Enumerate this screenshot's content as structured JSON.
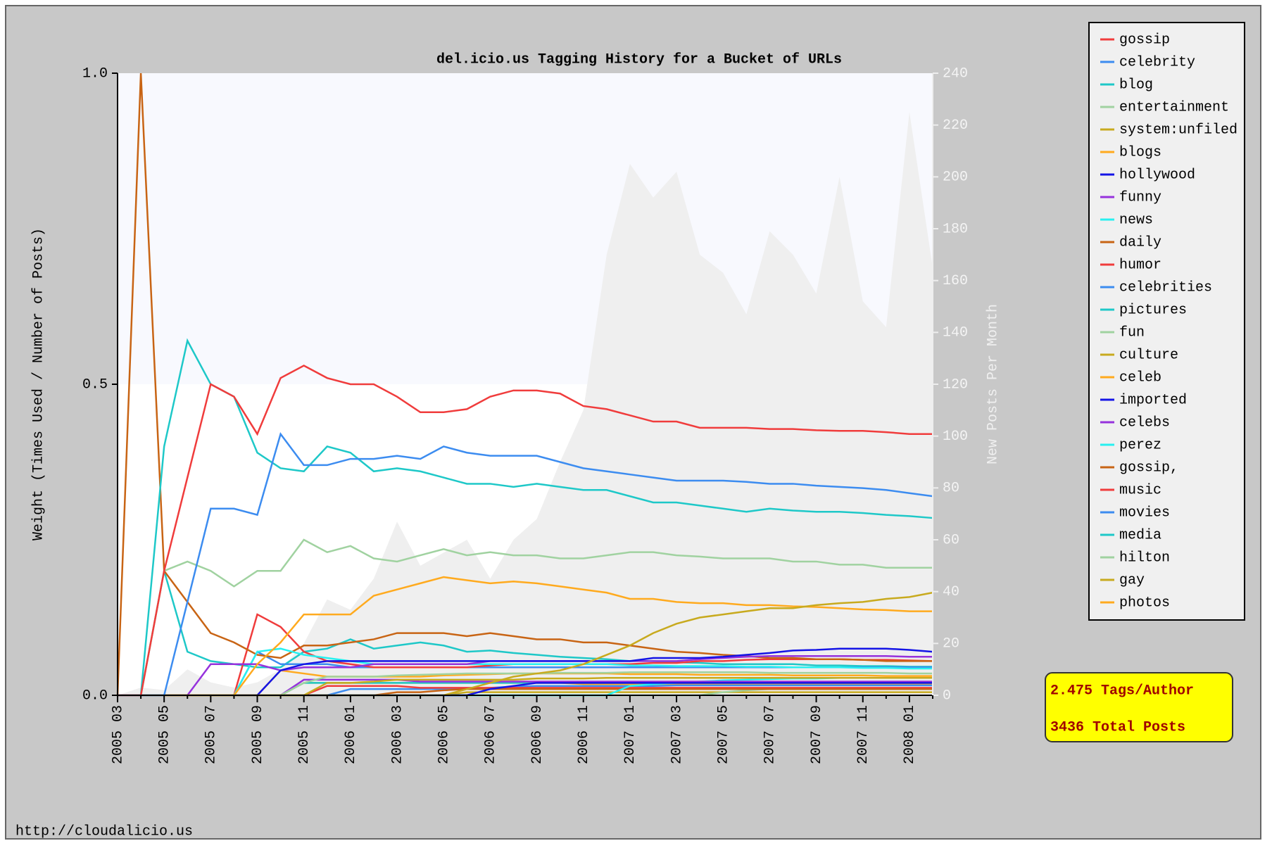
{
  "chart_data": {
    "type": "line",
    "title": "del.icio.us Tagging History for a Bucket of URLs",
    "ylabel": "Weight (Times Used / Number of Posts)",
    "y2label": "New Posts Per Month",
    "footer": "http://cloudalicio.us",
    "stats": [
      "2.475 Tags/Author",
      "3436 Total Posts"
    ],
    "categories": [
      "2005 03",
      null,
      "2005 05",
      null,
      "2005 07",
      null,
      "2005 09",
      null,
      "2005 11",
      null,
      "2006 01",
      null,
      "2006 03",
      null,
      "2006 05",
      null,
      "2006 07",
      null,
      "2006 09",
      null,
      "2006 11",
      null,
      "2007 01",
      null,
      "2007 03",
      null,
      "2007 05",
      null,
      "2007 07",
      null,
      "2007 09",
      null,
      "2007 11",
      null,
      "2008 01",
      null
    ],
    "ylim": [
      0,
      1
    ],
    "yticks": [
      {
        "value": 0,
        "label": "0.0"
      },
      {
        "value": 0.5,
        "label": "0.5"
      },
      {
        "value": 1,
        "label": "1.0"
      }
    ],
    "y2lim": [
      0,
      240
    ],
    "y2ticks": [
      0,
      20,
      40,
      60,
      80,
      100,
      120,
      140,
      160,
      180,
      200,
      220,
      240
    ],
    "area": {
      "axis": "y2",
      "color": "#efefef",
      "values": [
        0,
        3,
        2,
        10,
        5,
        3,
        5,
        10,
        20,
        37,
        33,
        45,
        67,
        50,
        55,
        60,
        45,
        60,
        68,
        90,
        110,
        170,
        205,
        192,
        202,
        170,
        163,
        147,
        179,
        170,
        155,
        200,
        152,
        142,
        225,
        165
      ]
    },
    "series": [
      {
        "name": "gossip",
        "color": "#f03c3c",
        "values": [
          0,
          0,
          0.2,
          0.35,
          0.5,
          0.48,
          0.42,
          0.51,
          0.53,
          0.51,
          0.5,
          0.5,
          0.48,
          0.455,
          0.455,
          0.46,
          0.48,
          0.49,
          0.49,
          0.485,
          0.465,
          0.46,
          0.45,
          0.44,
          0.44,
          0.43,
          0.43,
          0.43,
          0.428,
          0.428,
          0.426,
          0.425,
          0.425,
          0.423,
          0.42,
          0.42
        ]
      },
      {
        "name": "celebrity",
        "color": "#3c8cf0",
        "values": [
          0,
          0,
          0,
          0.15,
          0.3,
          0.3,
          0.29,
          0.42,
          0.37,
          0.37,
          0.38,
          0.38,
          0.385,
          0.38,
          0.4,
          0.39,
          0.385,
          0.385,
          0.385,
          0.375,
          0.365,
          0.36,
          0.355,
          0.35,
          0.345,
          0.345,
          0.345,
          0.343,
          0.34,
          0.34,
          0.337,
          0.335,
          0.333,
          0.33,
          0.325,
          0.32
        ]
      },
      {
        "name": "blog",
        "color": "#1ec8c8",
        "values": [
          0,
          0,
          0.4,
          0.57,
          0.5,
          0.48,
          0.39,
          0.365,
          0.36,
          0.4,
          0.39,
          0.36,
          0.365,
          0.36,
          0.35,
          0.34,
          0.34,
          0.335,
          0.34,
          0.335,
          0.33,
          0.33,
          0.32,
          0.31,
          0.31,
          0.305,
          0.3,
          0.295,
          0.3,
          0.297,
          0.295,
          0.295,
          0.293,
          0.29,
          0.288,
          0.285
        ]
      },
      {
        "name": "entertainment",
        "color": "#a0d2a0",
        "values": [
          0,
          0,
          0.2,
          0.215,
          0.2,
          0.175,
          0.2,
          0.2,
          0.25,
          0.23,
          0.24,
          0.22,
          0.215,
          0.225,
          0.235,
          0.225,
          0.23,
          0.225,
          0.225,
          0.22,
          0.22,
          0.225,
          0.23,
          0.23,
          0.225,
          0.223,
          0.22,
          0.22,
          0.22,
          0.215,
          0.215,
          0.21,
          0.21,
          0.205,
          0.205,
          0.205
        ]
      },
      {
        "name": "system:unfiled",
        "color": "#c8aa1e",
        "values": [
          0,
          0,
          0,
          0,
          0,
          0,
          0,
          0,
          0,
          0,
          0,
          0,
          0,
          0,
          0,
          0.01,
          0.02,
          0.03,
          0.035,
          0.04,
          0.05,
          0.065,
          0.08,
          0.1,
          0.115,
          0.125,
          0.13,
          0.135,
          0.14,
          0.14,
          0.145,
          0.148,
          0.15,
          0.155,
          0.158,
          0.165
        ]
      },
      {
        "name": "blogs",
        "color": "#ffaa1e",
        "values": [
          0,
          0,
          0,
          0,
          0,
          0,
          0.05,
          0.085,
          0.13,
          0.13,
          0.13,
          0.16,
          0.17,
          0.18,
          0.19,
          0.185,
          0.18,
          0.183,
          0.18,
          0.175,
          0.17,
          0.165,
          0.155,
          0.155,
          0.15,
          0.148,
          0.148,
          0.145,
          0.145,
          0.143,
          0.142,
          0.14,
          0.138,
          0.137,
          0.135,
          0.135
        ]
      },
      {
        "name": "hollywood",
        "color": "#1414e6",
        "values": [
          0,
          0,
          0,
          0,
          0,
          0,
          0,
          0.04,
          0.05,
          0.055,
          0.055,
          0.055,
          0.055,
          0.055,
          0.055,
          0.055,
          0.055,
          0.055,
          0.055,
          0.055,
          0.055,
          0.055,
          0.055,
          0.06,
          0.06,
          0.06,
          0.062,
          0.065,
          0.068,
          0.072,
          0.073,
          0.075,
          0.075,
          0.075,
          0.073,
          0.07
        ]
      },
      {
        "name": "funny",
        "color": "#9632dc",
        "values": [
          0,
          0,
          0,
          0,
          0.05,
          0.05,
          0.05,
          0.04,
          0.045,
          0.045,
          0.045,
          0.05,
          0.05,
          0.05,
          0.05,
          0.05,
          0.055,
          0.055,
          0.055,
          0.055,
          0.055,
          0.055,
          0.055,
          0.055,
          0.055,
          0.058,
          0.06,
          0.062,
          0.063,
          0.063,
          0.063,
          0.063,
          0.063,
          0.063,
          0.062,
          0.062
        ]
      },
      {
        "name": "news",
        "color": "#28f0f0",
        "values": [
          0,
          0,
          0,
          0,
          0,
          0,
          0.07,
          0.075,
          0.065,
          0.06,
          0.055,
          0.05,
          0.05,
          0.05,
          0.05,
          0.05,
          0.05,
          0.05,
          0.05,
          0.05,
          0.05,
          0.05,
          0.048,
          0.048,
          0.047,
          0.047,
          0.047,
          0.046,
          0.046,
          0.045,
          0.045,
          0.045,
          0.044,
          0.044,
          0.043,
          0.043
        ]
      },
      {
        "name": "daily",
        "color": "#c86414",
        "values": [
          0,
          1.0,
          0.2,
          0.15,
          0.1,
          0.085,
          0.065,
          0.06,
          0.08,
          0.08,
          0.085,
          0.09,
          0.1,
          0.1,
          0.1,
          0.095,
          0.1,
          0.095,
          0.09,
          0.09,
          0.085,
          0.085,
          0.08,
          0.075,
          0.07,
          0.068,
          0.065,
          0.063,
          0.06,
          0.06,
          0.058,
          0.058,
          0.057,
          0.055,
          0.055,
          0.055
        ]
      },
      {
        "name": "humor",
        "color": "#f03c3c",
        "values": [
          0,
          0,
          0,
          0,
          0,
          0,
          0.13,
          0.11,
          0.07,
          0.055,
          0.05,
          0.045,
          0.045,
          0.045,
          0.045,
          0.045,
          0.048,
          0.05,
          0.05,
          0.05,
          0.05,
          0.05,
          0.05,
          0.052,
          0.052,
          0.055,
          0.055,
          0.057,
          0.058,
          0.058,
          0.058,
          0.058,
          0.057,
          0.057,
          0.056,
          0.055
        ]
      },
      {
        "name": "celebrities",
        "color": "#3c8cf0",
        "values": [
          0,
          0,
          0,
          0,
          0,
          0,
          0.07,
          0.05,
          0.05,
          0.05,
          0.045,
          0.045,
          0.045,
          0.045,
          0.045,
          0.045,
          0.045,
          0.045,
          0.045,
          0.045,
          0.045,
          0.045,
          0.045,
          0.045,
          0.045,
          0.045,
          0.045,
          0.045,
          0.045,
          0.045,
          0.045,
          0.045,
          0.045,
          0.045,
          0.045,
          0.045
        ]
      },
      {
        "name": "pictures",
        "color": "#1ec8c8",
        "values": [
          0,
          0,
          0.2,
          0.07,
          0.055,
          0.05,
          0.045,
          0.045,
          0.07,
          0.075,
          0.09,
          0.075,
          0.08,
          0.085,
          0.08,
          0.07,
          0.072,
          0.068,
          0.065,
          0.062,
          0.06,
          0.058,
          0.055,
          0.055,
          0.053,
          0.052,
          0.05,
          0.05,
          0.05,
          0.05,
          0.048,
          0.048,
          0.047,
          0.047,
          0.046,
          0.046
        ]
      },
      {
        "name": "fun",
        "color": "#a0d2a0",
        "values": [
          0,
          0,
          0,
          0,
          0,
          0,
          0,
          0,
          0.02,
          0.03,
          0.03,
          0.03,
          0.032,
          0.033,
          0.034,
          0.035,
          0.035,
          0.035,
          0.035,
          0.036,
          0.036,
          0.036,
          0.037,
          0.037,
          0.037,
          0.037,
          0.037,
          0.037,
          0.036,
          0.036,
          0.036,
          0.036,
          0.036,
          0.036,
          0.035,
          0.035
        ]
      },
      {
        "name": "culture",
        "color": "#c8aa1e",
        "values": [
          0,
          0,
          0,
          0,
          0,
          0,
          0,
          0,
          0,
          0.02,
          0.02,
          0.022,
          0.025,
          0.025,
          0.025,
          0.025,
          0.025,
          0.025,
          0.027,
          0.027,
          0.027,
          0.028,
          0.028,
          0.028,
          0.028,
          0.028,
          0.028,
          0.028,
          0.028,
          0.028,
          0.028,
          0.028,
          0.028,
          0.028,
          0.028,
          0.028
        ]
      },
      {
        "name": "celeb",
        "color": "#ffaa1e",
        "values": [
          0,
          0,
          0,
          0,
          0,
          0,
          0,
          0.04,
          0.035,
          0.03,
          0.03,
          0.03,
          0.03,
          0.03,
          0.032,
          0.033,
          0.034,
          0.035,
          0.035,
          0.035,
          0.035,
          0.035,
          0.034,
          0.034,
          0.034,
          0.033,
          0.033,
          0.033,
          0.033,
          0.032,
          0.032,
          0.032,
          0.032,
          0.031,
          0.031,
          0.031
        ]
      },
      {
        "name": "imported",
        "color": "#1414e6",
        "values": [
          0,
          0,
          0,
          0,
          0,
          0,
          0,
          0,
          0,
          0,
          0,
          0,
          0,
          0,
          0,
          0,
          0.01,
          0.015,
          0.02,
          0.02,
          0.02,
          0.02,
          0.02,
          0.02,
          0.02,
          0.02,
          0.02,
          0.02,
          0.02,
          0.02,
          0.02,
          0.02,
          0.02,
          0.02,
          0.02,
          0.02
        ]
      },
      {
        "name": "celebs",
        "color": "#9632dc",
        "values": [
          0,
          0,
          0,
          0,
          0,
          0,
          0,
          0,
          0.025,
          0.025,
          0.025,
          0.025,
          0.025,
          0.022,
          0.022,
          0.022,
          0.022,
          0.022,
          0.022,
          0.022,
          0.022,
          0.022,
          0.022,
          0.022,
          0.022,
          0.022,
          0.022,
          0.022,
          0.022,
          0.022,
          0.022,
          0.022,
          0.022,
          0.022,
          0.022,
          0.022
        ]
      },
      {
        "name": "perez",
        "color": "#28f0f0",
        "values": [
          0,
          0,
          0,
          0,
          0,
          0,
          0,
          0,
          0,
          0,
          0,
          0,
          0,
          0,
          0,
          0,
          0,
          0,
          0,
          0,
          0,
          0,
          0.015,
          0.018,
          0.02,
          0.022,
          0.024,
          0.025,
          0.026,
          0.027,
          0.027,
          0.028,
          0.028,
          0.028,
          0.028,
          0.028
        ]
      },
      {
        "name": "gossip,",
        "color": "#c86414",
        "values": [
          0,
          0,
          0,
          0,
          0,
          0,
          0,
          0,
          0,
          0,
          0,
          0,
          0.005,
          0.005,
          0.008,
          0.01,
          0.01,
          0.01,
          0.01,
          0.01,
          0.01,
          0.01,
          0.01,
          0.01,
          0.01,
          0.01,
          0.01,
          0.01,
          0.01,
          0.01,
          0.01,
          0.01,
          0.01,
          0.01,
          0.01,
          0.01
        ]
      },
      {
        "name": "music",
        "color": "#f03c3c",
        "values": [
          0,
          0,
          0,
          0,
          0,
          0,
          0,
          0,
          0,
          0.015,
          0.015,
          0.015,
          0.015,
          0.012,
          0.012,
          0.012,
          0.012,
          0.012,
          0.012,
          0.012,
          0.012,
          0.012,
          0.012,
          0.012,
          0.012,
          0.012,
          0.012,
          0.012,
          0.012,
          0.012,
          0.012,
          0.012,
          0.012,
          0.012,
          0.012,
          0.012
        ]
      },
      {
        "name": "movies",
        "color": "#3c8cf0",
        "values": [
          0,
          0,
          0,
          0,
          0,
          0,
          0,
          0,
          0,
          0,
          0.01,
          0.01,
          0.01,
          0.01,
          0.01,
          0.01,
          0.012,
          0.014,
          0.015,
          0.015,
          0.015,
          0.015,
          0.015,
          0.015,
          0.016,
          0.016,
          0.016,
          0.016,
          0.016,
          0.016,
          0.016,
          0.016,
          0.016,
          0.016,
          0.016,
          0.016
        ]
      },
      {
        "name": "media",
        "color": "#1ec8c8",
        "values": [
          0,
          0,
          0,
          0,
          0,
          0,
          0,
          0,
          0.02,
          0.02,
          0.02,
          0.02,
          0.02,
          0.02,
          0.02,
          0.02,
          0.02,
          0.02,
          0.02,
          0.02,
          0.02,
          0.02,
          0.02,
          0.02,
          0.02,
          0.02,
          0.02,
          0.02,
          0.02,
          0.02,
          0.02,
          0.02,
          0.02,
          0.02,
          0.02,
          0.02
        ]
      },
      {
        "name": "hilton",
        "color": "#a0d2a0",
        "values": [
          0,
          0,
          0,
          0,
          0,
          0,
          0,
          0,
          0,
          0,
          0,
          0,
          0,
          0,
          0,
          0,
          0,
          0,
          0,
          0,
          0,
          0,
          0,
          0,
          0,
          0,
          0.005,
          0.008,
          0.01,
          0.01,
          0.01,
          0.01,
          0.01,
          0.01,
          0.01,
          0.01
        ]
      },
      {
        "name": "gay",
        "color": "#c8aa1e",
        "values": [
          0,
          0,
          0,
          0,
          0,
          0,
          0,
          0,
          0,
          0,
          0,
          0,
          0,
          0,
          0,
          0.005,
          0.005,
          0.005,
          0.005,
          0.005,
          0.005,
          0.005,
          0.005,
          0.005,
          0.005,
          0.005,
          0.005,
          0.005,
          0.005,
          0.005,
          0.005,
          0.005,
          0.005,
          0.005,
          0.005,
          0.005
        ]
      },
      {
        "name": "photos",
        "color": "#ffaa1e",
        "values": [
          0,
          0,
          0,
          0,
          0,
          0,
          0,
          0,
          0.02,
          0.02,
          0.02,
          0.02,
          0.02,
          0.02,
          0.02,
          0.02,
          0.02,
          0.02,
          0.02,
          0.02,
          0.018,
          0.018,
          0.018,
          0.018,
          0.018,
          0.018,
          0.018,
          0.018,
          0.018,
          0.018,
          0.018,
          0.018,
          0.018,
          0.018,
          0.018,
          0.018
        ]
      }
    ]
  }
}
